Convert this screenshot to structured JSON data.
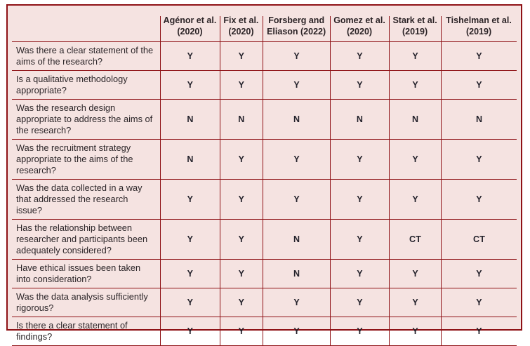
{
  "table": {
    "corner_label": "",
    "columns": [
      "Agénor et al. (2020)",
      "Fix et al. (2020)",
      "Forsberg and Eliason (2022)",
      "Gomez et al. (2020)",
      "Stark et al. (2019)",
      "Tishelman et al. (2019)"
    ],
    "rows": [
      {
        "question": "Was there a clear statement of the aims of the research?",
        "values": [
          "Y",
          "Y",
          "Y",
          "Y",
          "Y",
          "Y"
        ]
      },
      {
        "question": "Is a qualitative methodology appropriate?",
        "values": [
          "Y",
          "Y",
          "Y",
          "Y",
          "Y",
          "Y"
        ]
      },
      {
        "question": "Was the research design appropriate to address the aims of the research?",
        "values": [
          "N",
          "N",
          "N",
          "N",
          "N",
          "N"
        ]
      },
      {
        "question": "Was the recruitment strategy appropriate to the aims of the research?",
        "values": [
          "N",
          "Y",
          "Y",
          "Y",
          "Y",
          "Y"
        ]
      },
      {
        "question": "Was the data collected in a way that addressed the research issue?",
        "values": [
          "Y",
          "Y",
          "Y",
          "Y",
          "Y",
          "Y"
        ]
      },
      {
        "question": "Has the relationship between researcher and participants been adequately considered?",
        "values": [
          "Y",
          "Y",
          "N",
          "Y",
          "CT",
          "CT"
        ]
      },
      {
        "question": "Have ethical issues been taken into consideration?",
        "values": [
          "Y",
          "Y",
          "N",
          "Y",
          "Y",
          "Y"
        ]
      },
      {
        "question": "Was the data analysis sufficiently rigorous?",
        "values": [
          "Y",
          "Y",
          "Y",
          "Y",
          "Y",
          "Y"
        ]
      },
      {
        "question": "Is there a clear statement of findings?",
        "values": [
          "Y",
          "Y",
          "Y",
          "Y",
          "Y",
          "Y"
        ]
      }
    ]
  },
  "colors": {
    "page_background": "#ffffff",
    "table_background": "#f5e3e1",
    "border": "#8e1115",
    "question_text": "#2b2528",
    "value_text": "#24222b"
  }
}
